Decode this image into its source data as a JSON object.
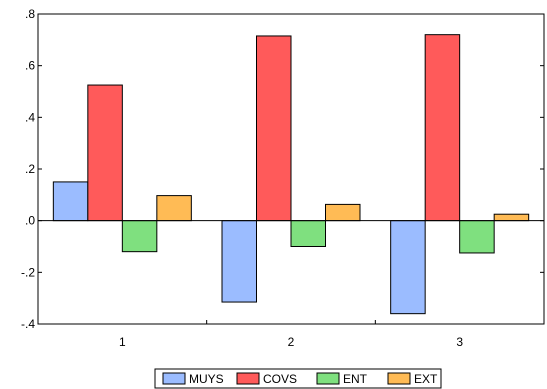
{
  "chart_data": {
    "type": "bar",
    "title": "",
    "xlabel": "",
    "ylabel": "",
    "categories": [
      "1",
      "2",
      "3"
    ],
    "ylim": [
      -0.4,
      0.8
    ],
    "yticks": [
      -0.4,
      -0.2,
      0.0,
      0.2,
      0.4,
      0.6,
      0.8
    ],
    "ytick_labels": [
      "-.4",
      "-.2",
      ".0",
      ".2",
      ".4",
      ".6",
      ".8"
    ],
    "grid": false,
    "legend_position": "bottom",
    "series": [
      {
        "name": "MUYS",
        "color": "#9bbcff",
        "values": [
          0.15,
          -0.315,
          -0.36
        ]
      },
      {
        "name": "COVS",
        "color": "#ff5a5a",
        "values": [
          0.525,
          0.715,
          0.72
        ]
      },
      {
        "name": "ENT",
        "color": "#7fe07f",
        "values": [
          -0.12,
          -0.1,
          -0.125
        ]
      },
      {
        "name": "EXT",
        "color": "#ffbb55",
        "values": [
          0.097,
          0.063,
          0.025
        ]
      }
    ]
  }
}
